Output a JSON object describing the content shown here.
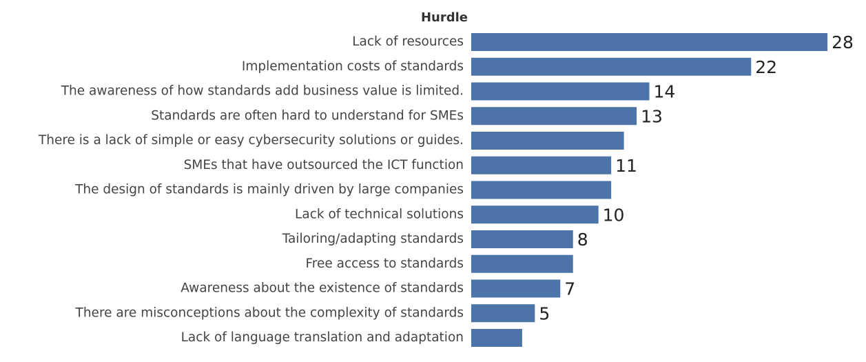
{
  "chart_data": {
    "type": "hbar",
    "y_label": "Hurdle",
    "categories": [
      "Lack of resources",
      "Implementation costs of standards",
      "The awareness of how standards add business value is limited.",
      "Standards are often hard to understand for SMEs",
      "There is a lack of simple or easy cybersecurity solutions or guides.",
      "SMEs that have outsourced the ICT function",
      "The design of standards is mainly driven by large companies",
      "Lack of technical solutions",
      "Tailoring/adapting standards",
      "Free access to standards",
      "Awareness about the existence of standards",
      "There are misconceptions about the complexity of standards",
      "Lack of language translation and adaptation"
    ],
    "values": [
      28,
      22,
      14,
      13,
      12,
      11,
      11,
      10,
      8,
      8,
      7,
      5,
      4
    ],
    "value_labels": [
      "28",
      "22",
      "14",
      "13",
      null,
      "11",
      null,
      "10",
      "8",
      null,
      "7",
      "5",
      null
    ],
    "color": "#4c74a8",
    "xlim": [
      0,
      30
    ]
  }
}
